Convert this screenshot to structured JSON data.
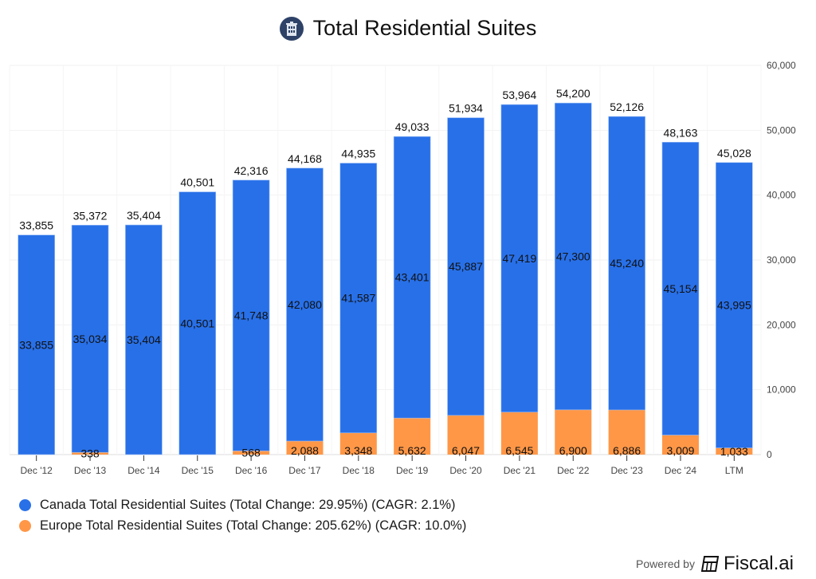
{
  "title": "Total Residential Suites",
  "title_icon": "building-icon",
  "colors": {
    "canada": "#2870e8",
    "europe": "#ff9747",
    "icon_bg": "#2e4268"
  },
  "chart_data": {
    "type": "bar",
    "stacked": true,
    "title": "Total Residential Suites",
    "xlabel": "",
    "ylabel": "",
    "ylim": [
      0,
      60000
    ],
    "yticks": [
      0,
      10000,
      20000,
      30000,
      40000,
      50000,
      60000
    ],
    "ytick_labels": [
      "0",
      "10,000",
      "20,000",
      "30,000",
      "40,000",
      "50,000",
      "60,000"
    ],
    "y_axis_side": "right",
    "grid": true,
    "legend_position": "bottom-left",
    "categories": [
      "Dec '12",
      "Dec '13",
      "Dec '14",
      "Dec '15",
      "Dec '16",
      "Dec '17",
      "Dec '18",
      "Dec '19",
      "Dec '20",
      "Dec '21",
      "Dec '22",
      "Dec '23",
      "Dec '24",
      "LTM"
    ],
    "series": [
      {
        "name": "Europe Total Residential Suites",
        "color": "#ff9747",
        "values": [
          0,
          338,
          0,
          0,
          568,
          2088,
          3348,
          5632,
          6047,
          6545,
          6900,
          6886,
          3009,
          1033
        ],
        "labels": [
          "",
          "338",
          "",
          "",
          "568",
          "2,088",
          "3,348",
          "5,632",
          "6,047",
          "6,545",
          "6,900",
          "6,886",
          "3,009",
          "1,033"
        ]
      },
      {
        "name": "Canada Total Residential Suites",
        "color": "#2870e8",
        "values": [
          33855,
          35034,
          35404,
          40501,
          41748,
          42080,
          41587,
          43401,
          45887,
          47419,
          47300,
          45240,
          45154,
          43995
        ],
        "labels": [
          "33,855",
          "35,034",
          "35,404",
          "40,501",
          "41,748",
          "42,080",
          "41,587",
          "43,401",
          "45,887",
          "47,419",
          "47,300",
          "45,240",
          "45,154",
          "43,995"
        ]
      }
    ],
    "totals": [
      33855,
      35372,
      35404,
      40501,
      42316,
      44168,
      44935,
      49033,
      51934,
      53964,
      54200,
      52126,
      48163,
      45028
    ],
    "total_labels": [
      "33,855",
      "35,372",
      "35,404",
      "40,501",
      "42,316",
      "44,168",
      "44,935",
      "49,033",
      "51,934",
      "53,964",
      "54,200",
      "52,126",
      "48,163",
      "45,028"
    ]
  },
  "legend": [
    {
      "label": "Canada Total Residential Suites (Total Change: 29.95%) (CAGR: 2.1%)",
      "color": "#2870e8"
    },
    {
      "label": "Europe Total Residential Suites (Total Change: 205.62%) (CAGR: 10.0%)",
      "color": "#ff9747"
    }
  ],
  "footer": {
    "powered_by": "Powered by",
    "brand": "Fiscal.ai"
  }
}
